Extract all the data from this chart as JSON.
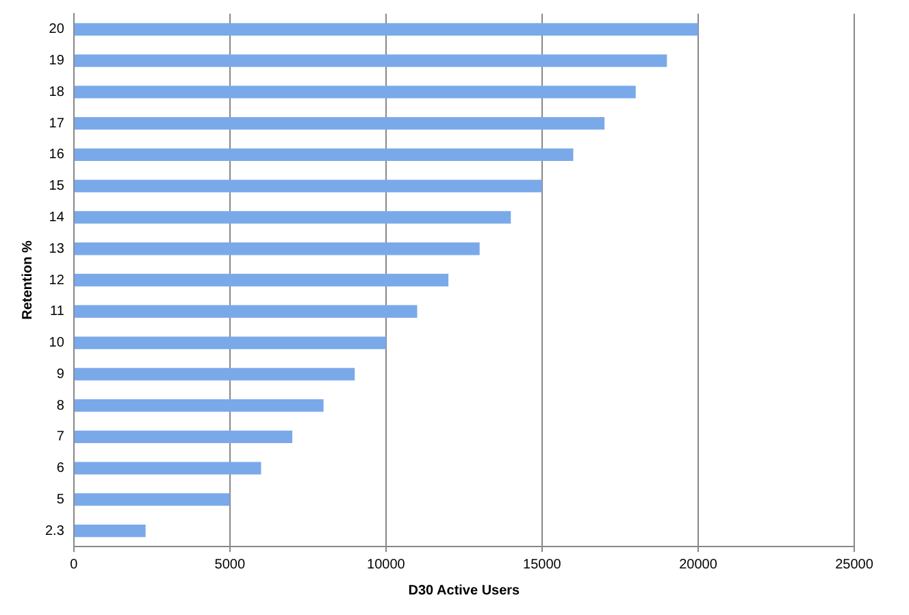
{
  "chart_data": {
    "type": "bar",
    "orientation": "horizontal",
    "xlabel": "D30 Active Users",
    "ylabel": "Retention %",
    "categories": [
      "20",
      "19",
      "18",
      "17",
      "16",
      "15",
      "14",
      "13",
      "12",
      "11",
      "10",
      "9",
      "8",
      "7",
      "6",
      "5",
      "2.3"
    ],
    "values": [
      20000,
      19000,
      18000,
      17000,
      16000,
      15000,
      14000,
      13000,
      12000,
      11000,
      10000,
      9000,
      8000,
      7000,
      6000,
      5000,
      2300
    ],
    "color": "#7aa9ea",
    "xlim": [
      0,
      25000
    ],
    "xticks": [
      0,
      5000,
      10000,
      15000,
      20000,
      25000
    ],
    "grid": "x",
    "legend": false
  }
}
